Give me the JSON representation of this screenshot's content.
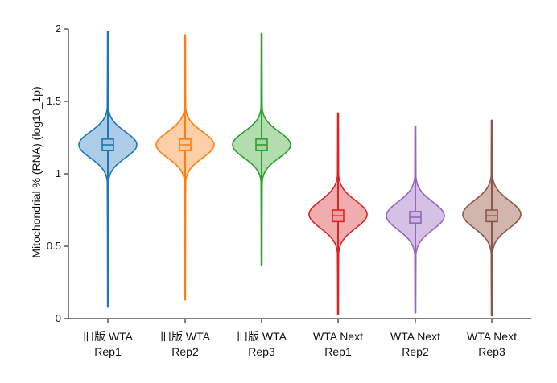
{
  "chart_data": {
    "type": "violin",
    "title": "",
    "xlabel": "",
    "ylabel": "Mitochondrial % (RNA) (log10_1p)",
    "ylim": [
      0,
      2
    ],
    "yticks": [
      "0",
      "0.5",
      "1",
      "1.5",
      "2"
    ],
    "grid": false,
    "legend": "none",
    "series": [
      {
        "name": "旧版 WTA Rep1",
        "line1": "旧版 WTA",
        "line2": "Rep1",
        "color": "#1f77b4",
        "fill": "#9fc3e3",
        "min": 0.08,
        "q1": 1.16,
        "median": 1.2,
        "q3": 1.24,
        "max": 1.98,
        "mode": 1.2,
        "spread": 0.09
      },
      {
        "name": "旧版 WTA Rep2",
        "line1": "旧版 WTA",
        "line2": "Rep2",
        "color": "#ff7f0e",
        "fill": "#fcc79a",
        "min": 0.13,
        "q1": 1.16,
        "median": 1.2,
        "q3": 1.24,
        "max": 1.96,
        "mode": 1.2,
        "spread": 0.09
      },
      {
        "name": "旧版 WTA Rep3",
        "line1": "旧版 WTA",
        "line2": "Rep3",
        "color": "#2ca02c",
        "fill": "#a6d6a1",
        "min": 0.37,
        "q1": 1.16,
        "median": 1.2,
        "q3": 1.24,
        "max": 1.97,
        "mode": 1.2,
        "spread": 0.09
      },
      {
        "name": "WTA Next Rep1",
        "line1": "WTA Next",
        "line2": "Rep1",
        "color": "#d62728",
        "fill": "#ef9f9f",
        "min": 0.03,
        "q1": 0.67,
        "median": 0.71,
        "q3": 0.75,
        "max": 1.42,
        "mode": 0.72,
        "spread": 0.095
      },
      {
        "name": "WTA Next Rep2",
        "line1": "WTA Next",
        "line2": "Rep2",
        "color": "#9467bd",
        "fill": "#cdb6e0",
        "min": 0.04,
        "q1": 0.66,
        "median": 0.7,
        "q3": 0.74,
        "max": 1.33,
        "mode": 0.71,
        "spread": 0.095
      },
      {
        "name": "WTA Next Rep3",
        "line1": "WTA Next",
        "line2": "Rep3",
        "color": "#8c564b",
        "fill": "#caa99f",
        "min": 0.02,
        "q1": 0.67,
        "median": 0.71,
        "q3": 0.75,
        "max": 1.37,
        "mode": 0.72,
        "spread": 0.095
      }
    ]
  }
}
